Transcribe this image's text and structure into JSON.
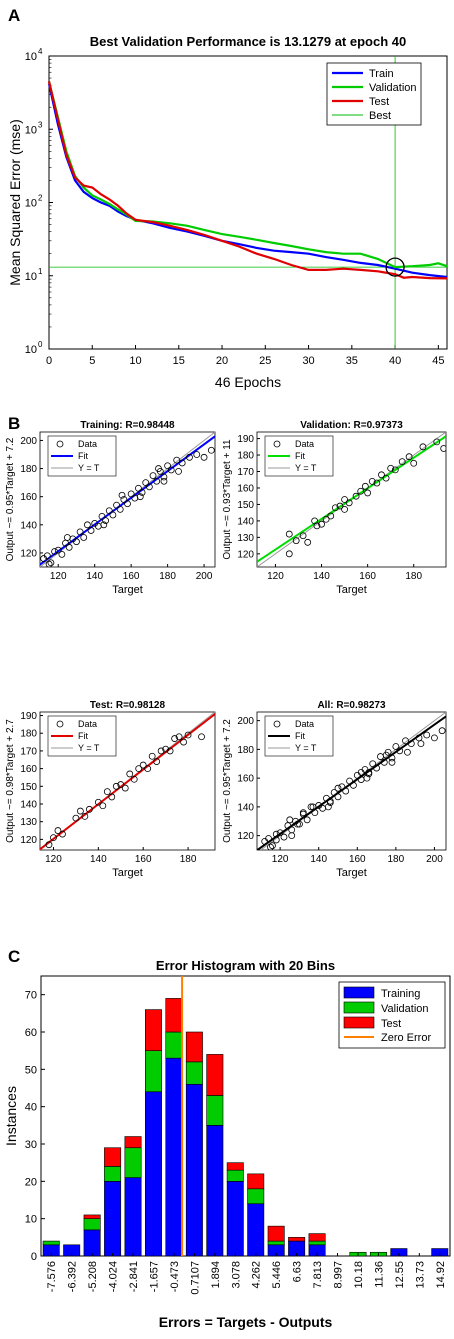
{
  "panels": {
    "a": "A",
    "b": "B",
    "c": "C"
  },
  "chart_data": [
    {
      "type": "line",
      "title": "Best Validation Performance is 13.1279 at epoch 40",
      "xlabel": "46 Epochs",
      "ylabel": "Mean Squared Error  (mse)",
      "yscale": "log",
      "xlim": [
        0,
        46
      ],
      "ylim": [
        1,
        10000
      ],
      "xticks": [
        "0",
        "5",
        "10",
        "15",
        "20",
        "25",
        "30",
        "35",
        "40",
        "45"
      ],
      "yticks": [
        {
          "base": "10",
          "exp": "0"
        },
        {
          "base": "10",
          "exp": "1"
        },
        {
          "base": "10",
          "exp": "2"
        },
        {
          "base": "10",
          "exp": "3"
        },
        {
          "base": "10",
          "exp": "4"
        }
      ],
      "legend_position": "top-right",
      "best": {
        "epoch": 40,
        "value": 13.1279
      },
      "series": [
        {
          "name": "Train",
          "color": "#0000ff",
          "x": [
            0,
            1,
            2,
            3,
            4,
            5,
            6,
            7,
            8,
            9,
            10,
            12,
            14,
            16,
            18,
            20,
            22,
            24,
            26,
            28,
            30,
            32,
            34,
            36,
            38,
            40,
            42,
            44,
            46
          ],
          "y": [
            4200,
            1200,
            420,
            200,
            140,
            115,
            100,
            90,
            75,
            65,
            58,
            52,
            45,
            40,
            35,
            30,
            27,
            24,
            22,
            21,
            20,
            18,
            16.5,
            15,
            14,
            12.5,
            11,
            10.2,
            9.6
          ]
        },
        {
          "name": "Validation",
          "color": "#00cc00",
          "x": [
            0,
            1,
            2,
            3,
            4,
            5,
            6,
            7,
            8,
            9,
            10,
            12,
            14,
            16,
            18,
            20,
            22,
            24,
            26,
            28,
            30,
            32,
            34,
            36,
            38,
            40,
            42,
            44,
            45,
            46
          ],
          "y": [
            4500,
            1500,
            500,
            230,
            160,
            125,
            110,
            95,
            80,
            68,
            56,
            55,
            52,
            48,
            42,
            37,
            34,
            31,
            28,
            25.5,
            23,
            21,
            20,
            20,
            17,
            13.13,
            13.5,
            14,
            14.8,
            13.5
          ]
        },
        {
          "name": "Test",
          "color": "#e00000",
          "x": [
            0,
            1,
            2,
            3,
            4,
            5,
            6,
            7,
            8,
            9,
            10,
            12,
            14,
            16,
            18,
            20,
            22,
            24,
            26,
            28,
            30,
            32,
            34,
            36,
            38,
            40,
            41,
            42,
            44,
            46
          ],
          "y": [
            4500,
            1400,
            450,
            220,
            170,
            160,
            130,
            110,
            90,
            70,
            58,
            54,
            48,
            42,
            36,
            30,
            25,
            20,
            17,
            14,
            12,
            12,
            12.5,
            12,
            11.5,
            10.5,
            9.4,
            9.6,
            9.3,
            9.2
          ]
        }
      ],
      "best_label": "Best",
      "best_color": "#00bb00"
    },
    {
      "type": "scatter",
      "title": "Training: R=0.98448",
      "xlabel": "Target",
      "ylabel": "Output ~= 0.95*Target + 7.2",
      "xlim": [
        110,
        206
      ],
      "ylim": [
        110,
        206
      ],
      "xticks": [
        "120",
        "140",
        "160",
        "180",
        "200"
      ],
      "yticks": [
        "120",
        "140",
        "160",
        "180",
        "200"
      ],
      "fit": {
        "slope": 0.95,
        "intercept": 7.2,
        "color": "#0000ff"
      },
      "legend": [
        "Data",
        "Fit",
        "Y = T"
      ],
      "points": [
        [
          112,
          116
        ],
        [
          114,
          118
        ],
        [
          116,
          113
        ],
        [
          118,
          121
        ],
        [
          120,
          122
        ],
        [
          122,
          119
        ],
        [
          124,
          127
        ],
        [
          126,
          124
        ],
        [
          128,
          130
        ],
        [
          130,
          128
        ],
        [
          132,
          135
        ],
        [
          134,
          131
        ],
        [
          136,
          140
        ],
        [
          138,
          136
        ],
        [
          140,
          141
        ],
        [
          142,
          139
        ],
        [
          144,
          146
        ],
        [
          146,
          143
        ],
        [
          148,
          150
        ],
        [
          150,
          147
        ],
        [
          152,
          154
        ],
        [
          154,
          151
        ],
        [
          156,
          158
        ],
        [
          158,
          155
        ],
        [
          160,
          162
        ],
        [
          162,
          159
        ],
        [
          164,
          166
        ],
        [
          166,
          163
        ],
        [
          168,
          170
        ],
        [
          170,
          167
        ],
        [
          172,
          175
        ],
        [
          174,
          171
        ],
        [
          176,
          178
        ],
        [
          178,
          174
        ],
        [
          180,
          182
        ],
        [
          182,
          179
        ],
        [
          185,
          186
        ],
        [
          188,
          184
        ],
        [
          192,
          188
        ],
        [
          196,
          190
        ],
        [
          200,
          188
        ],
        [
          204,
          193
        ],
        [
          115,
          112
        ],
        [
          125,
          131
        ],
        [
          145,
          140
        ],
        [
          155,
          161
        ],
        [
          165,
          160
        ],
        [
          175,
          180
        ],
        [
          178,
          171
        ],
        [
          186,
          178
        ]
      ]
    },
    {
      "type": "scatter",
      "title": "Validation: R=0.97373",
      "xlabel": "Target",
      "ylabel": "Output ~= 0.93*Target + 11",
      "xlim": [
        112,
        194
      ],
      "ylim": [
        112,
        194
      ],
      "xticks": [
        "120",
        "140",
        "160",
        "180"
      ],
      "yticks": [
        "120",
        "130",
        "140",
        "150",
        "160",
        "170",
        "180",
        "190"
      ],
      "fit": {
        "slope": 0.93,
        "intercept": 11,
        "color": "#00dd00"
      },
      "legend": [
        "Data",
        "Fit",
        "Y = T"
      ],
      "points": [
        [
          126,
          120
        ],
        [
          126,
          132
        ],
        [
          129,
          128
        ],
        [
          132,
          131
        ],
        [
          134,
          127
        ],
        [
          137,
          140
        ],
        [
          138,
          137
        ],
        [
          140,
          138
        ],
        [
          142,
          141
        ],
        [
          144,
          143
        ],
        [
          146,
          148
        ],
        [
          148,
          149
        ],
        [
          150,
          153
        ],
        [
          150,
          147
        ],
        [
          152,
          151
        ],
        [
          155,
          155
        ],
        [
          157,
          158
        ],
        [
          159,
          161
        ],
        [
          160,
          157
        ],
        [
          162,
          164
        ],
        [
          164,
          163
        ],
        [
          166,
          168
        ],
        [
          168,
          166
        ],
        [
          170,
          172
        ],
        [
          172,
          171
        ],
        [
          175,
          176
        ],
        [
          178,
          179
        ],
        [
          180,
          175
        ],
        [
          184,
          185
        ],
        [
          190,
          188
        ],
        [
          193,
          184
        ]
      ]
    },
    {
      "type": "scatter",
      "title": "Test: R=0.98128",
      "xlabel": "Target",
      "ylabel": "Output ~= 0.98*Target + 2.7",
      "xlim": [
        114,
        192
      ],
      "ylim": [
        114,
        192
      ],
      "xticks": [
        "120",
        "140",
        "160",
        "180"
      ],
      "yticks": [
        "120",
        "130",
        "140",
        "150",
        "160",
        "170",
        "180",
        "190"
      ],
      "fit": {
        "slope": 0.98,
        "intercept": 2.7,
        "color": "#e00000"
      },
      "legend": [
        "Data",
        "Fit",
        "Y = T"
      ],
      "points": [
        [
          118,
          117
        ],
        [
          120,
          121
        ],
        [
          122,
          125
        ],
        [
          124,
          123
        ],
        [
          130,
          132
        ],
        [
          132,
          136
        ],
        [
          134,
          133
        ],
        [
          136,
          137
        ],
        [
          140,
          141
        ],
        [
          142,
          139
        ],
        [
          144,
          147
        ],
        [
          146,
          144
        ],
        [
          148,
          150
        ],
        [
          150,
          151
        ],
        [
          152,
          149
        ],
        [
          154,
          157
        ],
        [
          156,
          154
        ],
        [
          158,
          160
        ],
        [
          160,
          162
        ],
        [
          162,
          160
        ],
        [
          164,
          167
        ],
        [
          166,
          164
        ],
        [
          168,
          170
        ],
        [
          170,
          171
        ],
        [
          172,
          170
        ],
        [
          174,
          177
        ],
        [
          176,
          178
        ],
        [
          178,
          175
        ],
        [
          180,
          179
        ],
        [
          186,
          178
        ]
      ]
    },
    {
      "type": "scatter",
      "title": "All: R=0.98273",
      "xlabel": "Target",
      "ylabel": "Output ~= 0.95*Target + 7.2",
      "xlim": [
        108,
        206
      ],
      "ylim": [
        110,
        206
      ],
      "xticks": [
        "120",
        "140",
        "160",
        "180",
        "200"
      ],
      "yticks": [
        "120",
        "140",
        "160",
        "180",
        "200"
      ],
      "fit": {
        "slope": 0.95,
        "intercept": 7.2,
        "color": "#000000"
      },
      "legend": [
        "Data",
        "Fit",
        "Y = T"
      ],
      "points": [
        [
          112,
          116
        ],
        [
          114,
          118
        ],
        [
          116,
          113
        ],
        [
          118,
          121
        ],
        [
          120,
          122
        ],
        [
          122,
          119
        ],
        [
          124,
          127
        ],
        [
          126,
          124
        ],
        [
          128,
          130
        ],
        [
          130,
          128
        ],
        [
          132,
          135
        ],
        [
          134,
          131
        ],
        [
          136,
          140
        ],
        [
          138,
          136
        ],
        [
          140,
          141
        ],
        [
          142,
          139
        ],
        [
          144,
          146
        ],
        [
          146,
          143
        ],
        [
          148,
          150
        ],
        [
          150,
          147
        ],
        [
          152,
          154
        ],
        [
          154,
          151
        ],
        [
          156,
          158
        ],
        [
          158,
          155
        ],
        [
          160,
          162
        ],
        [
          162,
          159
        ],
        [
          164,
          166
        ],
        [
          166,
          163
        ],
        [
          168,
          170
        ],
        [
          170,
          167
        ],
        [
          172,
          175
        ],
        [
          174,
          171
        ],
        [
          176,
          178
        ],
        [
          178,
          174
        ],
        [
          180,
          182
        ],
        [
          182,
          179
        ],
        [
          185,
          186
        ],
        [
          188,
          184
        ],
        [
          192,
          188
        ],
        [
          196,
          190
        ],
        [
          200,
          188
        ],
        [
          204,
          193
        ],
        [
          126,
          120
        ],
        [
          129,
          128
        ],
        [
          137,
          140
        ],
        [
          150,
          153
        ],
        [
          162,
          164
        ],
        [
          175,
          176
        ],
        [
          193,
          184
        ],
        [
          118,
          117
        ],
        [
          132,
          136
        ],
        [
          146,
          144
        ],
        [
          166,
          164
        ],
        [
          186,
          178
        ],
        [
          115,
          112
        ],
        [
          125,
          131
        ],
        [
          145,
          140
        ],
        [
          165,
          160
        ],
        [
          178,
          171
        ]
      ]
    },
    {
      "type": "bar",
      "stacked": true,
      "title": "Error Histogram with 20 Bins",
      "xlabel": "Errors = Targets - Outputs",
      "ylabel": "Instances",
      "ylim": [
        0,
        75
      ],
      "yticks": [
        "0",
        "10",
        "20",
        "30",
        "40",
        "50",
        "60",
        "70"
      ],
      "categories": [
        "-7.576",
        "-6.392",
        "-5.208",
        "-4.024",
        "-2.841",
        "-1.657",
        "-0.473",
        "0.7107",
        "1.894",
        "3.078",
        "4.262",
        "5.446",
        "6.63",
        "7.813",
        "8.997",
        "10.18",
        "11.36",
        "12.55",
        "13.73",
        "14.92"
      ],
      "series": [
        {
          "name": "Training",
          "color": "#0000ff",
          "values": [
            3,
            3,
            7,
            20,
            21,
            44,
            53,
            46,
            35,
            20,
            14,
            3,
            4,
            3,
            0,
            0,
            0,
            2,
            0,
            2
          ]
        },
        {
          "name": "Validation",
          "color": "#00cc00",
          "values": [
            1,
            0,
            3,
            4,
            8,
            11,
            7,
            6,
            8,
            3,
            4,
            1,
            0,
            1,
            0,
            1,
            1,
            0,
            0,
            0
          ]
        },
        {
          "name": "Test",
          "color": "#ff0000",
          "values": [
            0,
            0,
            1,
            5,
            3,
            11,
            9,
            8,
            11,
            2,
            4,
            4,
            1,
            2,
            0,
            0,
            0,
            0,
            0,
            0
          ]
        }
      ],
      "zero_error": {
        "name": "Zero Error",
        "color": "#ff8000",
        "value": 0
      }
    }
  ]
}
